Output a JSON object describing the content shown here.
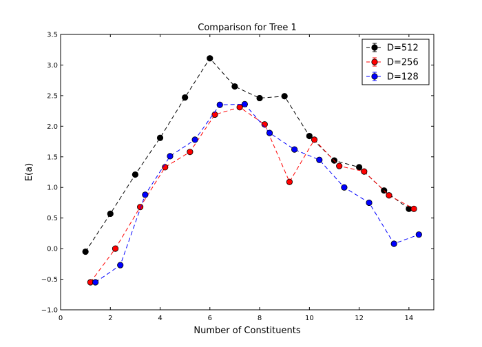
{
  "chart_data": {
    "type": "line",
    "title": "Comparison for Tree 1",
    "xlabel": "Number of Constituents",
    "ylabel": "E(a)",
    "xlim": [
      0,
      15
    ],
    "ylim": [
      -1.0,
      3.5
    ],
    "xticks": [
      0,
      2,
      4,
      6,
      8,
      10,
      12,
      14
    ],
    "xtick_labels": [
      "0",
      "2",
      "4",
      "6",
      "8",
      "10",
      "12",
      "14"
    ],
    "yticks": [
      -1.0,
      -0.5,
      0.0,
      0.5,
      1.0,
      1.5,
      2.0,
      2.5,
      3.0,
      3.5
    ],
    "ytick_labels": [
      "−1.0",
      "−0.5",
      "0.0",
      "0.5",
      "1.0",
      "1.5",
      "2.0",
      "2.5",
      "3.0",
      "3.5"
    ],
    "grid": false,
    "legend_position": "top-right",
    "line_style": "dashed",
    "marker": "circle",
    "series": [
      {
        "name": "D=512",
        "color": "#000000",
        "x": [
          1,
          2,
          3,
          4,
          5,
          6,
          7,
          8,
          9,
          10,
          11,
          12,
          13,
          14
        ],
        "y": [
          -0.05,
          0.57,
          1.21,
          1.81,
          2.47,
          3.11,
          2.65,
          2.46,
          2.49,
          1.84,
          1.44,
          1.33,
          0.95,
          0.65
        ]
      },
      {
        "name": "D=256",
        "color": "#ff0000",
        "x": [
          1.2,
          2.2,
          3.2,
          4.2,
          5.2,
          6.2,
          7.2,
          8.2,
          9.2,
          10.2,
          11.2,
          12.2,
          13.2,
          14.2
        ],
        "y": [
          -0.55,
          0.0,
          0.68,
          1.33,
          1.58,
          2.19,
          2.31,
          2.03,
          1.09,
          1.78,
          1.35,
          1.26,
          0.87,
          0.65
        ]
      },
      {
        "name": "D=128",
        "color": "#0000ff",
        "x": [
          1.4,
          2.4,
          3.4,
          4.4,
          5.4,
          6.4,
          7.4,
          8.4,
          9.4,
          10.4,
          11.4,
          12.4,
          13.4,
          14.4
        ],
        "y": [
          -0.55,
          -0.27,
          0.88,
          1.51,
          1.78,
          2.35,
          2.36,
          1.89,
          1.62,
          1.45,
          1.0,
          0.75,
          0.08,
          0.23
        ]
      }
    ]
  }
}
